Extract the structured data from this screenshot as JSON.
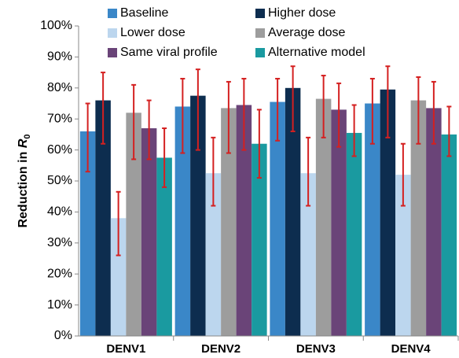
{
  "chart_data": {
    "type": "bar",
    "ylabel": {
      "text": "Reduction in",
      "symbol": "R",
      "subscript": "0"
    },
    "categories": [
      "DENV1",
      "DENV2",
      "DENV3",
      "DENV4"
    ],
    "ylim": [
      0,
      100
    ],
    "yticks": [
      {
        "value": 0,
        "label": "0%"
      },
      {
        "value": 10,
        "label": "10%"
      },
      {
        "value": 20,
        "label": "20%"
      },
      {
        "value": 30,
        "label": "30%"
      },
      {
        "value": 40,
        "label": "40%"
      },
      {
        "value": 50,
        "label": "50%"
      },
      {
        "value": 60,
        "label": "60%"
      },
      {
        "value": 70,
        "label": "70%"
      },
      {
        "value": 80,
        "label": "80%"
      },
      {
        "value": 90,
        "label": "90%"
      },
      {
        "value": 100,
        "label": "100%"
      }
    ],
    "error_color": "#d42020",
    "series": [
      {
        "name": "Baseline",
        "color": "#3a87c8",
        "values": [
          66,
          74,
          75.5,
          75
        ],
        "err_low": [
          53,
          59,
          63,
          62
        ],
        "err_high": [
          75,
          83,
          83,
          83
        ]
      },
      {
        "name": "Higher dose",
        "color": "#0d2d4f",
        "values": [
          76,
          77.5,
          80,
          79.5
        ],
        "err_low": [
          62,
          60,
          66,
          64
        ],
        "err_high": [
          85,
          86,
          87,
          87
        ]
      },
      {
        "name": "Lower dose",
        "color": "#bcd6ee",
        "values": [
          38,
          52.5,
          52.5,
          52
        ],
        "err_low": [
          26,
          42,
          42,
          42
        ],
        "err_high": [
          46.5,
          64,
          64,
          62
        ]
      },
      {
        "name": "Average dose",
        "color": "#9d9d9d",
        "values": [
          72,
          73.5,
          76.5,
          76
        ],
        "err_low": [
          57,
          59,
          64,
          62
        ],
        "err_high": [
          81,
          82,
          84,
          83.5
        ]
      },
      {
        "name": "Same viral profile",
        "color": "#6a4478",
        "values": [
          67,
          74.5,
          73,
          73.5
        ],
        "err_low": [
          57,
          60,
          61,
          62
        ],
        "err_high": [
          76,
          83,
          81.5,
          82
        ]
      },
      {
        "name": "Alternative model",
        "color": "#1a9aa0",
        "values": [
          57.5,
          62,
          65.5,
          65
        ],
        "err_low": [
          48,
          51,
          58,
          58
        ],
        "err_high": [
          67,
          73,
          74.5,
          74
        ]
      }
    ]
  }
}
